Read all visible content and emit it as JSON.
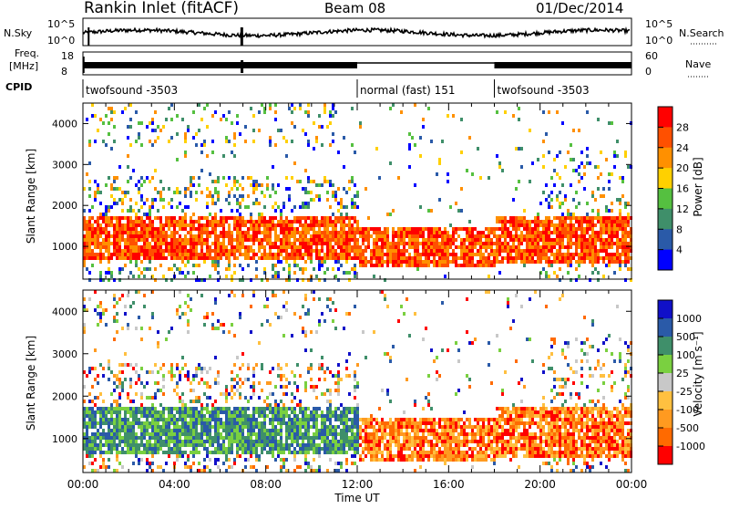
{
  "header": {
    "station": "Rankin Inlet (fitACF)",
    "beam": "Beam 08",
    "date": "01/Dec/2014"
  },
  "top_panels": {
    "nsky_label": "N.Sky",
    "nsky_ticks": [
      "10^5",
      "10^0"
    ],
    "nsearch_label": "N.Search",
    "nsearch_ticks": [
      "10^5",
      "10^0"
    ],
    "freq_label_1": "Freq.",
    "freq_label_2": "[MHz]",
    "freq_ticks": [
      "18",
      "8"
    ],
    "nave_label": "Nave",
    "nave_ticks": [
      "60",
      "0"
    ],
    "cpid_label": "CPID",
    "cpid_segments": [
      {
        "label": "twofsound -3503",
        "start_hour": 0,
        "end_hour": 12
      },
      {
        "label": "normal (fast) 151",
        "start_hour": 12,
        "end_hour": 18
      },
      {
        "label": "twofsound -3503",
        "start_hour": 18,
        "end_hour": 24
      }
    ]
  },
  "colors": {
    "power_scale": [
      "#0000ff",
      "#2a5aa8",
      "#3f8f6a",
      "#55c040",
      "#ffd000",
      "#ff9000",
      "#ff5000",
      "#ff0000"
    ],
    "velocity_scale": [
      "#ff0000",
      "#ff6a00",
      "#ff9a20",
      "#ffc040",
      "#c8c8c8",
      "#7ad040",
      "#3f8f6a",
      "#2a5aa8",
      "#1010c8"
    ]
  },
  "chart_data": [
    {
      "type": "heatmap",
      "name_id": "power",
      "x_range_hours": [
        0,
        24
      ],
      "xticks": [
        "00:00",
        "04:00",
        "08:00",
        "12:00",
        "16:00",
        "20:00",
        "00:00"
      ],
      "xlabel": "Time UT",
      "ylabel": "Slant Range [km]",
      "ylim": [
        200,
        4500
      ],
      "yticks": [
        1000,
        2000,
        3000,
        4000
      ],
      "colorbar_label": "Power [dB]",
      "colorbar_ticks": [
        "4",
        "8",
        "12",
        "16",
        "20",
        "24",
        "28"
      ],
      "colorbar_range": [
        0,
        32
      ]
    },
    {
      "type": "heatmap",
      "name_id": "velocity",
      "x_range_hours": [
        0,
        24
      ],
      "xticks": [
        "00:00",
        "04:00",
        "08:00",
        "12:00",
        "16:00",
        "20:00",
        "00:00"
      ],
      "xlabel": "Time UT",
      "ylabel": "Slant Range [km]",
      "ylim": [
        200,
        4500
      ],
      "yticks": [
        1000,
        2000,
        3000,
        4000
      ],
      "colorbar_label": "Velocity [m s⁻¹]",
      "colorbar_ticks": [
        "1000",
        "500",
        "100",
        "25",
        "-25",
        "-100",
        "-500",
        "-1000"
      ]
    }
  ]
}
